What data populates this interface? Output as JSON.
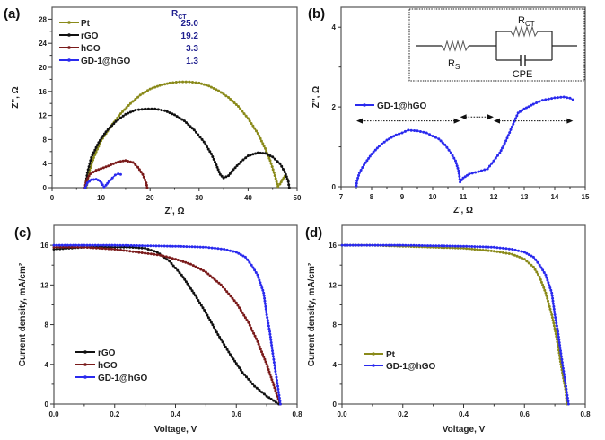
{
  "figure": {
    "panels": [
      "(a)",
      "(b)",
      "(c)",
      "(d)"
    ]
  },
  "chart_data": [
    {
      "id": "a",
      "panel_label": "(a)",
      "type": "line",
      "title": "",
      "xlabel": "Z', Ω",
      "ylabel": "Z'', Ω",
      "xlim": [
        0,
        50
      ],
      "ylim": [
        0,
        30
      ],
      "xticks": [
        0,
        10,
        20,
        30,
        40,
        50
      ],
      "yticks": [
        0,
        4,
        8,
        12,
        16,
        20,
        24,
        28
      ],
      "legend_position": "top-left",
      "legend_header": "R",
      "legend_header_sub": "CT",
      "series": [
        {
          "name": "Pt",
          "color": "#8a8a1a",
          "rct": "25.0",
          "points": [
            [
              7.0,
              0
            ],
            [
              7.5,
              2.5
            ],
            [
              8.5,
              5.0
            ],
            [
              10,
              7.8
            ],
            [
              12,
              10.2
            ],
            [
              14,
              12.3
            ],
            [
              16,
              14.0
            ],
            [
              18,
              15.4
            ],
            [
              20,
              16.4
            ],
            [
              22,
              17.0
            ],
            [
              24,
              17.4
            ],
            [
              26,
              17.6
            ],
            [
              28,
              17.6
            ],
            [
              30,
              17.4
            ],
            [
              32,
              16.9
            ],
            [
              34,
              16.1
            ],
            [
              36,
              15.0
            ],
            [
              38,
              13.5
            ],
            [
              40,
              11.5
            ],
            [
              42,
              9.0
            ],
            [
              43.5,
              6.5
            ],
            [
              44.5,
              4.5
            ],
            [
              45.3,
              2.5
            ],
            [
              45.8,
              1.0
            ],
            [
              46.1,
              0.2
            ],
            [
              46.5,
              0.6
            ],
            [
              47.0,
              1.3
            ],
            [
              47.5,
              1.9
            ]
          ]
        },
        {
          "name": "rGO",
          "color": "#111111",
          "rct": "19.2",
          "points": [
            [
              6.8,
              0
            ],
            [
              7.2,
              2.5
            ],
            [
              8,
              5.0
            ],
            [
              9.5,
              7.5
            ],
            [
              11,
              9.3
            ],
            [
              13,
              11.0
            ],
            [
              15,
              12.2
            ],
            [
              17,
              12.9
            ],
            [
              19,
              13.1
            ],
            [
              21,
              13.1
            ],
            [
              23,
              12.8
            ],
            [
              25,
              12.1
            ],
            [
              27,
              11.1
            ],
            [
              29,
              9.6
            ],
            [
              31,
              7.6
            ],
            [
              32.5,
              5.6
            ],
            [
              33.5,
              3.8
            ],
            [
              34.3,
              2.2
            ],
            [
              35,
              1.6
            ],
            [
              36,
              2.0
            ],
            [
              37,
              3.0
            ],
            [
              38.5,
              4.3
            ],
            [
              40,
              5.3
            ],
            [
              42,
              5.8
            ],
            [
              43.5,
              5.7
            ],
            [
              45,
              5.1
            ],
            [
              46.5,
              4.0
            ],
            [
              47.5,
              2.6
            ],
            [
              48.2,
              1.0
            ],
            [
              48.4,
              0
            ]
          ]
        },
        {
          "name": "hGO",
          "color": "#7a1a1a",
          "rct": "3.3",
          "points": [
            [
              6.7,
              0
            ],
            [
              7,
              1.2
            ],
            [
              7.8,
              2.3
            ],
            [
              9,
              2.9
            ],
            [
              10.5,
              3.3
            ],
            [
              12,
              3.8
            ],
            [
              13.5,
              4.3
            ],
            [
              15,
              4.5
            ],
            [
              16.5,
              4.2
            ],
            [
              17.5,
              3.4
            ],
            [
              18.5,
              2.2
            ],
            [
              19.2,
              0.8
            ],
            [
              19.4,
              0
            ]
          ]
        },
        {
          "name": "GD-1@hGO",
          "color": "#2a2aee",
          "rct": "1.3",
          "points": [
            [
              6.8,
              0
            ],
            [
              7.2,
              0.8
            ],
            [
              8,
              1.3
            ],
            [
              9,
              1.4
            ],
            [
              9.8,
              1.1
            ],
            [
              10.3,
              0.5
            ],
            [
              10.6,
              0.1
            ],
            [
              11,
              0.4
            ],
            [
              11.6,
              1.0
            ],
            [
              12.3,
              1.6
            ],
            [
              12.9,
              2.1
            ],
            [
              13.5,
              2.3
            ],
            [
              14.0,
              2.2
            ]
          ]
        }
      ]
    },
    {
      "id": "b",
      "panel_label": "(b)",
      "type": "line",
      "title": "",
      "xlabel": "Z', Ω",
      "ylabel": "Z'', Ω",
      "xlim": [
        7,
        15
      ],
      "ylim": [
        0,
        4.5
      ],
      "xticks": [
        7,
        8,
        9,
        10,
        11,
        12,
        13,
        14,
        15
      ],
      "yticks": [
        0,
        2,
        4
      ],
      "legend_position": "left",
      "series": [
        {
          "name": "GD-1@hGO",
          "color": "#2a2aee",
          "points": [
            [
              7.5,
              0.02
            ],
            [
              7.52,
              0.15
            ],
            [
              7.6,
              0.35
            ],
            [
              7.75,
              0.55
            ],
            [
              8.0,
              0.82
            ],
            [
              8.25,
              1.02
            ],
            [
              8.5,
              1.17
            ],
            [
              8.8,
              1.3
            ],
            [
              9.0,
              1.35
            ],
            [
              9.2,
              1.42
            ],
            [
              9.5,
              1.4
            ],
            [
              9.8,
              1.35
            ],
            [
              10.0,
              1.27
            ],
            [
              10.2,
              1.2
            ],
            [
              10.4,
              1.05
            ],
            [
              10.6,
              0.85
            ],
            [
              10.75,
              0.65
            ],
            [
              10.85,
              0.4
            ],
            [
              10.9,
              0.12
            ],
            [
              11.0,
              0.22
            ],
            [
              11.2,
              0.32
            ],
            [
              11.5,
              0.38
            ],
            [
              11.8,
              0.45
            ],
            [
              12.0,
              0.65
            ],
            [
              12.2,
              0.85
            ],
            [
              12.4,
              1.15
            ],
            [
              12.6,
              1.5
            ],
            [
              12.8,
              1.85
            ],
            [
              13.0,
              1.95
            ],
            [
              13.3,
              2.07
            ],
            [
              13.6,
              2.17
            ],
            [
              14.0,
              2.23
            ],
            [
              14.3,
              2.25
            ],
            [
              14.5,
              2.22
            ],
            [
              14.6,
              2.18
            ]
          ]
        }
      ],
      "annotations": {
        "arrows": [
          {
            "from": 7.5,
            "to": 10.9,
            "y": 1.65
          },
          {
            "from": 10.9,
            "to": 12.0,
            "y": 1.75
          },
          {
            "from": 12.0,
            "to": 14.6,
            "y": 1.65
          }
        ],
        "inset_circuit": {
          "labels": {
            "rs": "R",
            "rs_sub": "S",
            "rct": "R",
            "rct_sub": "CT",
            "cpe": "CPE"
          }
        }
      }
    },
    {
      "id": "c",
      "panel_label": "(c)",
      "type": "line",
      "title": "",
      "xlabel": "Voltage, V",
      "ylabel": "Current density, mA/cm²",
      "xlim": [
        0,
        0.8
      ],
      "ylim": [
        0,
        18
      ],
      "xticks": [
        "0.0",
        "0.2",
        "0.4",
        "0.6",
        "0.8"
      ],
      "yticks": [
        0,
        4,
        8,
        12,
        16
      ],
      "legend_position": "bottom-left",
      "series": [
        {
          "name": "rGO",
          "color": "#111111",
          "points": [
            [
              0,
              15.6
            ],
            [
              0.05,
              15.7
            ],
            [
              0.1,
              15.8
            ],
            [
              0.15,
              15.8
            ],
            [
              0.2,
              15.8
            ],
            [
              0.25,
              15.8
            ],
            [
              0.3,
              15.7
            ],
            [
              0.34,
              15.3
            ],
            [
              0.38,
              14.4
            ],
            [
              0.42,
              13.0
            ],
            [
              0.46,
              11.2
            ],
            [
              0.5,
              9.2
            ],
            [
              0.54,
              7.0
            ],
            [
              0.58,
              5.0
            ],
            [
              0.62,
              3.2
            ],
            [
              0.66,
              1.8
            ],
            [
              0.7,
              0.8
            ],
            [
              0.73,
              0.2
            ],
            [
              0.74,
              0
            ]
          ]
        },
        {
          "name": "hGO",
          "color": "#7a1a1a",
          "points": [
            [
              0,
              15.8
            ],
            [
              0.05,
              15.8
            ],
            [
              0.1,
              15.8
            ],
            [
              0.15,
              15.7
            ],
            [
              0.2,
              15.6
            ],
            [
              0.25,
              15.4
            ],
            [
              0.3,
              15.2
            ],
            [
              0.35,
              15.0
            ],
            [
              0.4,
              14.6
            ],
            [
              0.45,
              14.1
            ],
            [
              0.5,
              13.3
            ],
            [
              0.55,
              12.0
            ],
            [
              0.6,
              10.2
            ],
            [
              0.64,
              8.2
            ],
            [
              0.67,
              6.3
            ],
            [
              0.7,
              4.0
            ],
            [
              0.72,
              2.2
            ],
            [
              0.735,
              0.8
            ],
            [
              0.745,
              0
            ]
          ]
        },
        {
          "name": "GD-1@hGO",
          "color": "#2a2aee",
          "points": [
            [
              0,
              16.0
            ],
            [
              0.1,
              16.0
            ],
            [
              0.2,
              16.0
            ],
            [
              0.3,
              15.95
            ],
            [
              0.4,
              15.9
            ],
            [
              0.5,
              15.8
            ],
            [
              0.56,
              15.6
            ],
            [
              0.6,
              15.3
            ],
            [
              0.63,
              14.8
            ],
            [
              0.65,
              14.0
            ],
            [
              0.67,
              13.0
            ],
            [
              0.69,
              11.2
            ],
            [
              0.7,
              9.0
            ],
            [
              0.71,
              7.3
            ],
            [
              0.72,
              5.1
            ],
            [
              0.735,
              2.1
            ],
            [
              0.745,
              0
            ]
          ]
        }
      ]
    },
    {
      "id": "d",
      "panel_label": "(d)",
      "type": "line",
      "title": "",
      "xlabel": "Voltage, V",
      "ylabel": "Current density, mA/cm²",
      "xlim": [
        0,
        0.8
      ],
      "ylim": [
        0,
        18
      ],
      "xticks": [
        "0.0",
        "0.2",
        "0.4",
        "0.6",
        "0.8"
      ],
      "yticks": [
        0,
        4,
        8,
        12,
        16
      ],
      "legend_position": "bottom-left",
      "series": [
        {
          "name": "Pt",
          "color": "#8a8a1a",
          "points": [
            [
              0,
              16.0
            ],
            [
              0.1,
              16.0
            ],
            [
              0.2,
              15.9
            ],
            [
              0.3,
              15.8
            ],
            [
              0.4,
              15.7
            ],
            [
              0.5,
              15.4
            ],
            [
              0.56,
              15.1
            ],
            [
              0.6,
              14.6
            ],
            [
              0.63,
              13.8
            ],
            [
              0.65,
              12.8
            ],
            [
              0.67,
              11.2
            ],
            [
              0.69,
              9.0
            ],
            [
              0.7,
              7.6
            ],
            [
              0.71,
              6.0
            ],
            [
              0.72,
              4.0
            ],
            [
              0.735,
              1.5
            ],
            [
              0.74,
              0
            ]
          ]
        },
        {
          "name": "GD-1@hGO",
          "color": "#2a2aee",
          "points": [
            [
              0,
              16.0
            ],
            [
              0.1,
              16.0
            ],
            [
              0.2,
              16.0
            ],
            [
              0.3,
              15.95
            ],
            [
              0.4,
              15.9
            ],
            [
              0.5,
              15.8
            ],
            [
              0.56,
              15.6
            ],
            [
              0.6,
              15.3
            ],
            [
              0.63,
              14.8
            ],
            [
              0.65,
              14.0
            ],
            [
              0.67,
              13.0
            ],
            [
              0.69,
              11.2
            ],
            [
              0.7,
              9.0
            ],
            [
              0.71,
              7.3
            ],
            [
              0.72,
              5.1
            ],
            [
              0.735,
              2.1
            ],
            [
              0.745,
              0
            ]
          ]
        }
      ]
    }
  ]
}
